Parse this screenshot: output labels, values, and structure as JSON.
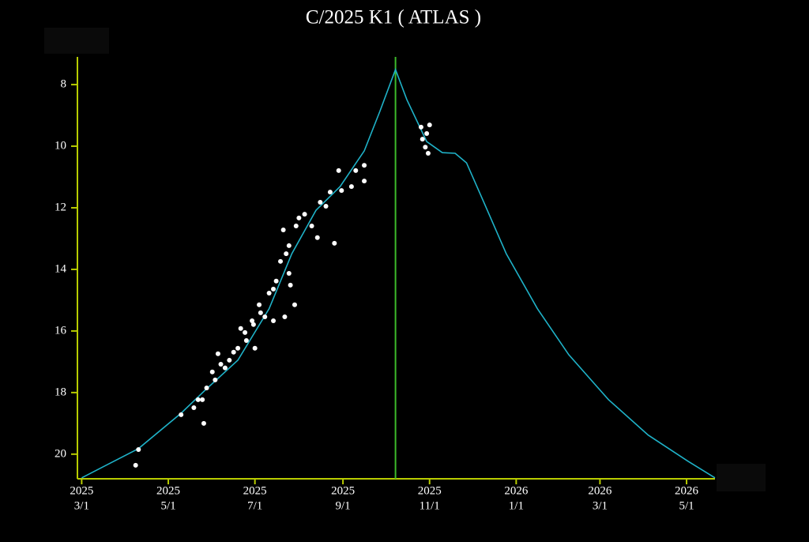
{
  "chart_data": {
    "type": "line",
    "title": "C/2025 K1 ( ATLAS )",
    "xlim": [
      "2025-02-26",
      "2026-05-21"
    ],
    "xticks": [
      {
        "value": "2025-03-01",
        "label": [
          "2025",
          "3/1"
        ]
      },
      {
        "value": "2025-05-01",
        "label": [
          "2025",
          "5/1"
        ]
      },
      {
        "value": "2025-07-01",
        "label": [
          "2025",
          "7/1"
        ]
      },
      {
        "value": "2025-09-01",
        "label": [
          "2025",
          "9/1"
        ]
      },
      {
        "value": "2025-11-01",
        "label": [
          "2025",
          "11/1"
        ]
      },
      {
        "value": "2026-01-01",
        "label": [
          "2026",
          "1/1"
        ]
      },
      {
        "value": "2026-03-01",
        "label": [
          "2026",
          "3/1"
        ]
      },
      {
        "value": "2026-05-01",
        "label": [
          "2026",
          "5/1"
        ]
      }
    ],
    "ylim": [
      20.8,
      7.1
    ],
    "yticks": [
      8,
      10,
      12,
      14,
      16,
      18,
      20
    ],
    "axis_color": "#b8cc00",
    "vertical_line": {
      "x": "2025-10-08",
      "color": "#3dbb2a"
    },
    "series": [
      {
        "type": "line",
        "color": "#1fb2c8",
        "x": [
          "2025-03-01",
          "2025-04-10",
          "2025-05-10",
          "2025-05-27",
          "2025-06-19",
          "2025-07-11",
          "2025-07-27",
          "2025-08-13",
          "2025-08-30",
          "2025-09-16",
          "2025-09-27",
          "2025-10-08",
          "2025-10-16",
          "2025-10-30",
          "2025-11-10",
          "2025-11-19",
          "2025-11-27",
          "2025-12-08",
          "2025-12-25",
          "2026-01-16",
          "2026-02-07",
          "2026-03-07",
          "2026-04-04",
          "2026-05-02",
          "2026-05-21"
        ],
        "values": [
          20.77,
          19.82,
          18.67,
          17.92,
          16.95,
          15.28,
          13.49,
          12.08,
          11.31,
          10.15,
          8.87,
          7.51,
          8.49,
          9.85,
          10.21,
          10.23,
          10.54,
          11.69,
          13.49,
          15.28,
          16.77,
          18.23,
          19.38,
          20.23,
          20.77
        ]
      },
      {
        "type": "scatter",
        "color": "#ffffff",
        "x": [
          "2025-04-08",
          "2025-04-10",
          "2025-05-10",
          "2025-05-19",
          "2025-05-22",
          "2025-05-25",
          "2025-05-26",
          "2025-05-28",
          "2025-06-01",
          "2025-06-03",
          "2025-06-05",
          "2025-06-07",
          "2025-06-10",
          "2025-06-13",
          "2025-06-16",
          "2025-06-19",
          "2025-06-21",
          "2025-06-24",
          "2025-06-25",
          "2025-06-29",
          "2025-06-30",
          "2025-07-01",
          "2025-07-04",
          "2025-07-05",
          "2025-07-08",
          "2025-07-11",
          "2025-07-14",
          "2025-07-14",
          "2025-07-16",
          "2025-07-19",
          "2025-07-21",
          "2025-07-22",
          "2025-07-23",
          "2025-07-25",
          "2025-07-25",
          "2025-07-26",
          "2025-07-29",
          "2025-07-30",
          "2025-08-01",
          "2025-08-05",
          "2025-08-10",
          "2025-08-14",
          "2025-08-16",
          "2025-08-20",
          "2025-08-23",
          "2025-08-26",
          "2025-08-29",
          "2025-08-31",
          "2025-09-07",
          "2025-09-10",
          "2025-09-16",
          "2025-09-16",
          "2025-10-26",
          "2025-10-27",
          "2025-10-29",
          "2025-10-30",
          "2025-10-31",
          "2025-11-01"
        ],
        "values": [
          20.36,
          19.85,
          18.72,
          18.49,
          18.23,
          18.23,
          19.0,
          17.85,
          17.33,
          17.59,
          16.74,
          17.08,
          17.2,
          16.95,
          16.69,
          16.56,
          15.92,
          16.05,
          16.31,
          15.67,
          15.79,
          16.56,
          15.15,
          15.41,
          15.54,
          14.77,
          15.67,
          14.64,
          14.38,
          13.74,
          12.72,
          15.54,
          13.49,
          13.23,
          14.13,
          14.51,
          15.15,
          12.59,
          12.33,
          12.21,
          12.59,
          12.97,
          11.82,
          11.95,
          11.49,
          13.15,
          10.79,
          11.44,
          11.31,
          10.79,
          10.62,
          11.13,
          9.38,
          9.77,
          10.03,
          9.59,
          10.23,
          9.31
        ]
      }
    ]
  }
}
